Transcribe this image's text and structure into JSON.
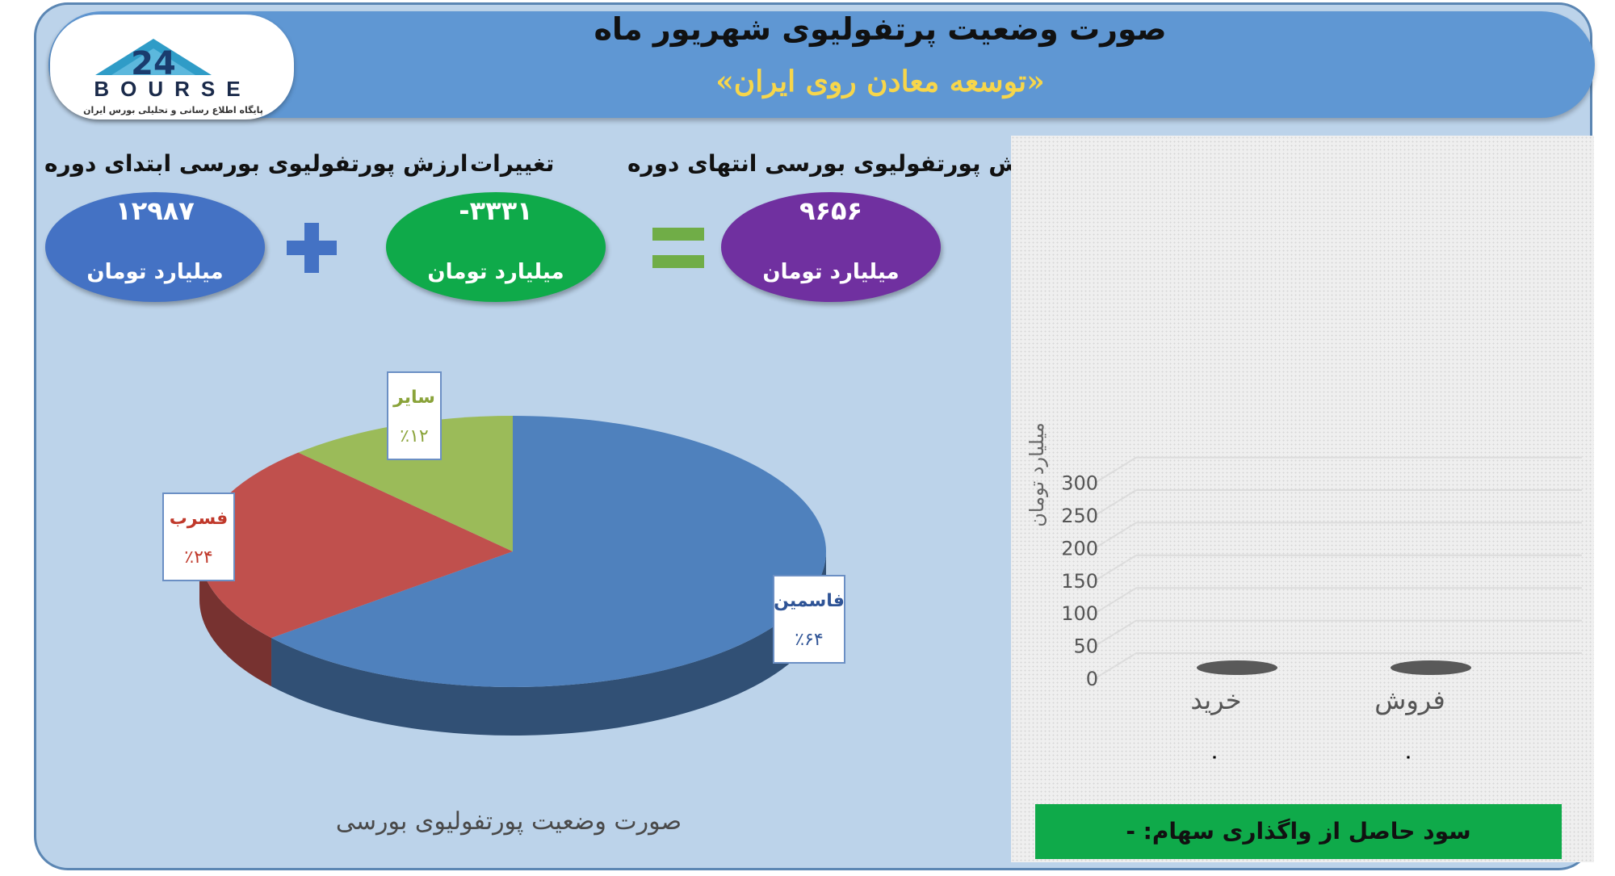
{
  "header": {
    "title": "صورت وضعیت پرتفولیوی شهریور ماه",
    "subtitle": "«توسعه معادن روی ایران»"
  },
  "logo": {
    "text": "BOURSE",
    "tagline": "پایگاه اطلاع رسانی و تحلیلی بورس ایران",
    "mark": "24"
  },
  "kpis": {
    "start": {
      "label": "ارزش پورتفولیوی بورسی ابتدای دوره",
      "value": "۱۲۹۸۷",
      "unit": "میلیارد تومان",
      "color": "#4472c4"
    },
    "change": {
      "label": "تغییرات",
      "value": "-۳۳۳۱",
      "unit": "میلیارد تومان",
      "color": "#0faa4a"
    },
    "end": {
      "label": "ارزش پورتفولیوی بورسی انتهای دوره",
      "value": "۹۶۵۶",
      "unit": "میلیارد تومان",
      "color": "#7030a0"
    }
  },
  "operators": {
    "plus": "+",
    "equals": "="
  },
  "pie_caption": "صورت وضعیت پورتفولیوی بورسی",
  "profit": {
    "text": "سود حاصل از واگذاری سهام: -"
  },
  "chart_data": [
    {
      "type": "pie",
      "title": "صورت وضعیت پورتفولیوی بورسی",
      "categories": [
        "فاسمین",
        "فسرب",
        "سایر"
      ],
      "values": [
        64,
        24,
        12
      ],
      "value_labels": [
        "٪۶۴",
        "٪۲۴",
        "٪۱۲"
      ],
      "colors": [
        "#4f81bd",
        "#c0504d",
        "#9bbb59"
      ],
      "label_colors": [
        "#2f5496",
        "#c0392b",
        "#8aa33a"
      ],
      "style": "3d"
    },
    {
      "type": "bar",
      "categories": [
        "خرید",
        "فروش"
      ],
      "values": [
        0,
        0
      ],
      "data_labels": [
        "٠",
        "٠"
      ],
      "ylabel": "میلیارد تومان",
      "ylim": [
        0,
        300
      ],
      "yticks": [
        "0",
        "50",
        "100",
        "150",
        "200",
        "250",
        "300"
      ],
      "style": "3d",
      "grid": true
    }
  ]
}
